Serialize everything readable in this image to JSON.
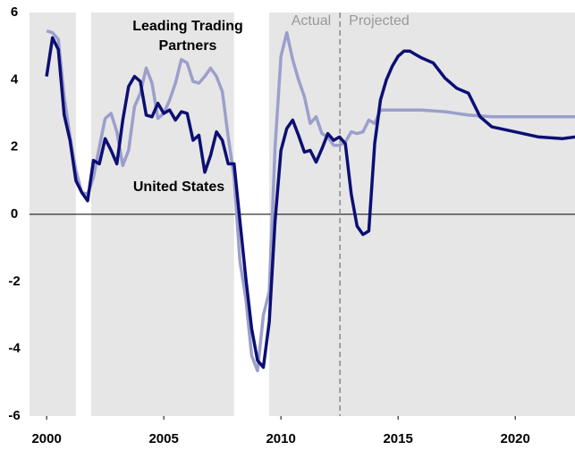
{
  "chart_data": {
    "type": "line",
    "xlim": [
      1999.27,
      2022.55
    ],
    "ylim": [
      -6,
      6
    ],
    "xticks": [
      2000,
      2005,
      2010,
      2015,
      2020
    ],
    "yticks": [
      -6,
      -4,
      -2,
      0,
      2,
      4,
      6
    ],
    "background": "#e6e6e6",
    "unshaded": [
      [
        2001.25,
        2001.9
      ],
      [
        2008.0,
        2009.5
      ]
    ],
    "divider": 2012.52,
    "divider_labels": [
      "Actual",
      "Projected"
    ],
    "series": [
      {
        "name": "Leading Trading Partners",
        "color": "#9c9fcb",
        "x": [
          2000.0,
          2000.25,
          2000.5,
          2000.75,
          2001.0,
          2001.25,
          2001.5,
          2001.75,
          2002.0,
          2002.25,
          2002.5,
          2002.75,
          2003.0,
          2003.25,
          2003.5,
          2003.75,
          2004.0,
          2004.25,
          2004.5,
          2004.75,
          2005.0,
          2005.25,
          2005.5,
          2005.75,
          2006.0,
          2006.25,
          2006.5,
          2006.75,
          2007.0,
          2007.25,
          2007.5,
          2007.75,
          2008.0,
          2008.25,
          2008.5,
          2008.75,
          2009.0,
          2009.25,
          2009.5,
          2009.75,
          2010.0,
          2010.25,
          2010.5,
          2010.75,
          2011.0,
          2011.25,
          2011.5,
          2011.75,
          2012.0,
          2012.25,
          2012.5,
          2012.75,
          2013.0,
          2013.25,
          2013.5,
          2013.75,
          2014.0,
          2014.25,
          2015.0,
          2016.0,
          2017.0,
          2018.0,
          2019.0,
          2020.0,
          2021.0,
          2022.55
        ],
        "values": [
          5.45,
          5.4,
          5.2,
          3.5,
          2.3,
          1.3,
          0.65,
          0.6,
          1.1,
          2.0,
          2.85,
          3.0,
          2.45,
          1.45,
          1.9,
          3.2,
          3.6,
          4.35,
          3.9,
          2.85,
          3.0,
          3.4,
          3.9,
          4.6,
          4.5,
          3.95,
          3.9,
          4.1,
          4.35,
          4.1,
          3.65,
          2.3,
          1.1,
          -1.4,
          -2.5,
          -4.2,
          -4.65,
          -3.0,
          -2.3,
          2.0,
          4.7,
          5.4,
          4.6,
          4.0,
          3.5,
          2.7,
          2.9,
          2.4,
          2.3,
          2.05,
          2.05,
          2.15,
          2.45,
          2.4,
          2.45,
          2.8,
          2.7,
          3.1,
          3.1,
          3.1,
          3.05,
          2.95,
          2.9,
          2.9,
          2.9,
          2.9
        ]
      },
      {
        "name": "United States",
        "color": "#0c0f73",
        "x": [
          2000.0,
          2000.25,
          2000.5,
          2000.75,
          2001.0,
          2001.25,
          2001.5,
          2001.75,
          2002.0,
          2002.25,
          2002.5,
          2002.75,
          2003.0,
          2003.25,
          2003.5,
          2003.75,
          2004.0,
          2004.25,
          2004.5,
          2004.75,
          2005.0,
          2005.25,
          2005.5,
          2005.75,
          2006.0,
          2006.25,
          2006.5,
          2006.75,
          2007.0,
          2007.25,
          2007.5,
          2007.75,
          2008.0,
          2008.25,
          2008.5,
          2008.75,
          2009.0,
          2009.25,
          2009.5,
          2009.75,
          2010.0,
          2010.25,
          2010.5,
          2010.75,
          2011.0,
          2011.25,
          2011.5,
          2011.75,
          2012.0,
          2012.25,
          2012.5,
          2012.75,
          2013.0,
          2013.25,
          2013.5,
          2013.75,
          2014.0,
          2014.25,
          2014.5,
          2014.75,
          2015.0,
          2015.25,
          2015.5,
          2015.75,
          2016.0,
          2016.5,
          2017.0,
          2017.5,
          2018.0,
          2018.5,
          2019.0,
          2020.0,
          2021.0,
          2022.0,
          2022.55
        ],
        "values": [
          4.1,
          5.25,
          4.9,
          2.95,
          2.2,
          1.0,
          0.65,
          0.4,
          1.6,
          1.5,
          2.25,
          1.9,
          1.5,
          2.8,
          3.8,
          4.1,
          3.95,
          2.95,
          2.9,
          3.3,
          3.0,
          3.1,
          2.8,
          3.05,
          3.0,
          2.2,
          2.35,
          1.25,
          1.75,
          2.45,
          2.2,
          1.5,
          1.5,
          -0.2,
          -1.9,
          -3.4,
          -4.35,
          -4.55,
          -3.2,
          -0.2,
          1.9,
          2.55,
          2.8,
          2.35,
          1.85,
          1.9,
          1.55,
          1.95,
          2.4,
          2.2,
          2.3,
          2.1,
          0.6,
          -0.35,
          -0.6,
          -0.5,
          2.1,
          3.4,
          4.0,
          4.4,
          4.7,
          4.85,
          4.85,
          4.75,
          4.65,
          4.5,
          4.05,
          3.75,
          3.6,
          2.9,
          2.6,
          2.45,
          2.3,
          2.25,
          2.3
        ]
      }
    ]
  }
}
